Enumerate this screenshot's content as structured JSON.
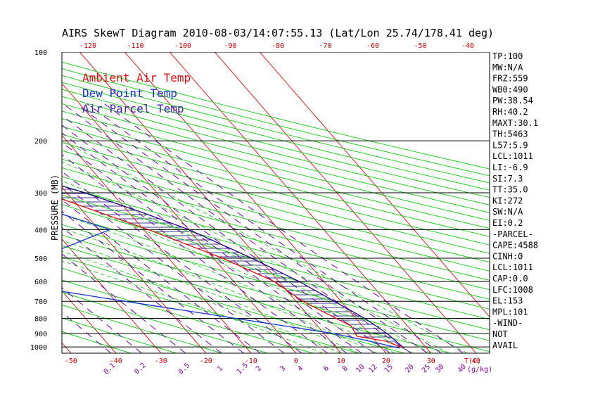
{
  "title": "AIRS SkewT Diagram 2010-08-03/14:07:55.13 (Lat/Lon 25.74/178.41 deg)",
  "colors": {
    "ambient": "#dd1111",
    "dewpoint": "#1133cc",
    "parcel": "#220088",
    "hatch": "#2a1a88",
    "isotherm": "#dd2222",
    "dry_adiabat": "#22cc22",
    "mixing_ratio": "#6a00b0",
    "isobar": "#000000"
  },
  "chart_data": {
    "type": "line",
    "title": "AIRS SkewT Diagram 2010-08-03/14:07:55.13 (Lat/Lon 25.74/178.41 deg)",
    "ylabel": "PRESSURE (MB)",
    "xlabel": "T(C)",
    "ylim": [
      1050,
      100
    ],
    "xlim": [
      -52,
      43
    ],
    "bottom_temp_ticks": [
      -50,
      -40,
      -30,
      -20,
      -10,
      0,
      10,
      20,
      30,
      40
    ],
    "top_temp_ticks": [
      -120,
      -110,
      -100,
      -90,
      -80,
      -70,
      -60,
      -50,
      -40
    ],
    "pressure_ticks": [
      100,
      200,
      300,
      400,
      500,
      600,
      700,
      800,
      900,
      1000
    ],
    "mixing_ratio_ticks": [
      "0.1",
      "0.2",
      "0.5",
      "1",
      "1.5",
      "2",
      "3",
      "4",
      "6",
      "8",
      "10",
      "12",
      "15",
      "20",
      "25",
      "30",
      "40"
    ],
    "mixing_ratio_unit": "(g/kg)",
    "legend": [
      {
        "label": "Ambient Air Temp",
        "color": "#dd1111"
      },
      {
        "label": "Dew Point Temp",
        "color": "#1133cc"
      },
      {
        "label": "Air Parcel Temp",
        "color": "#4422aa"
      }
    ],
    "series": [
      {
        "name": "Ambient Air Temp",
        "color": "#dd1111",
        "points": [
          [
            1010,
            25
          ],
          [
            955,
            22.1
          ],
          [
            920,
            16.8
          ],
          [
            850,
            17.5
          ],
          [
            700,
            11.5
          ],
          [
            600,
            9
          ],
          [
            500,
            2
          ],
          [
            400,
            -9
          ],
          [
            300,
            -25
          ],
          [
            250,
            -36
          ],
          [
            200,
            -50
          ],
          [
            175,
            -58
          ],
          [
            150,
            -66
          ],
          [
            100,
            -70
          ]
        ]
      },
      {
        "name": "Dew Point Temp",
        "color": "#1133cc",
        "points": [
          [
            1010,
            24
          ],
          [
            950,
            18
          ],
          [
            900,
            12
          ],
          [
            700,
            -28
          ],
          [
            600,
            -52
          ],
          [
            500,
            -39
          ],
          [
            400,
            -17.5
          ],
          [
            350,
            -26
          ],
          [
            300,
            -29
          ],
          [
            250,
            -40
          ],
          [
            200,
            -54
          ],
          [
            150,
            -70
          ],
          [
            100,
            -88
          ]
        ]
      },
      {
        "name": "Air Parcel Temp",
        "color": "#220088",
        "points": [
          [
            1010,
            25
          ],
          [
            900,
            24
          ],
          [
            800,
            22
          ],
          [
            700,
            18.5
          ],
          [
            600,
            14.5
          ],
          [
            500,
            8.5
          ],
          [
            400,
            0
          ],
          [
            350,
            -7
          ],
          [
            300,
            -16
          ],
          [
            250,
            -29
          ],
          [
            200,
            -46
          ],
          [
            170,
            -58
          ],
          [
            150,
            -66
          ],
          [
            100,
            -89
          ]
        ]
      }
    ]
  },
  "indices": [
    "TP:100",
    "MW:N/A",
    "FRZ:559",
    "WB0:490",
    "PW:38.54",
    "RH:40.2",
    "MAXT:30.1",
    "TH:5463",
    "L57:5.9",
    "LCL:1011",
    "LI:-6.9",
    "SI:7.3",
    "TT:35.0",
    "KI:272",
    "SW:N/A",
    "EI:0.2",
    "-PARCEL-",
    "CAPE:4588",
    "CINH:0",
    "LCL:1011",
    "CAP:0.0",
    "LFC:1008",
    "EL:153",
    "MPL:101",
    "-WIND-",
    "NOT",
    "AVAIL"
  ]
}
